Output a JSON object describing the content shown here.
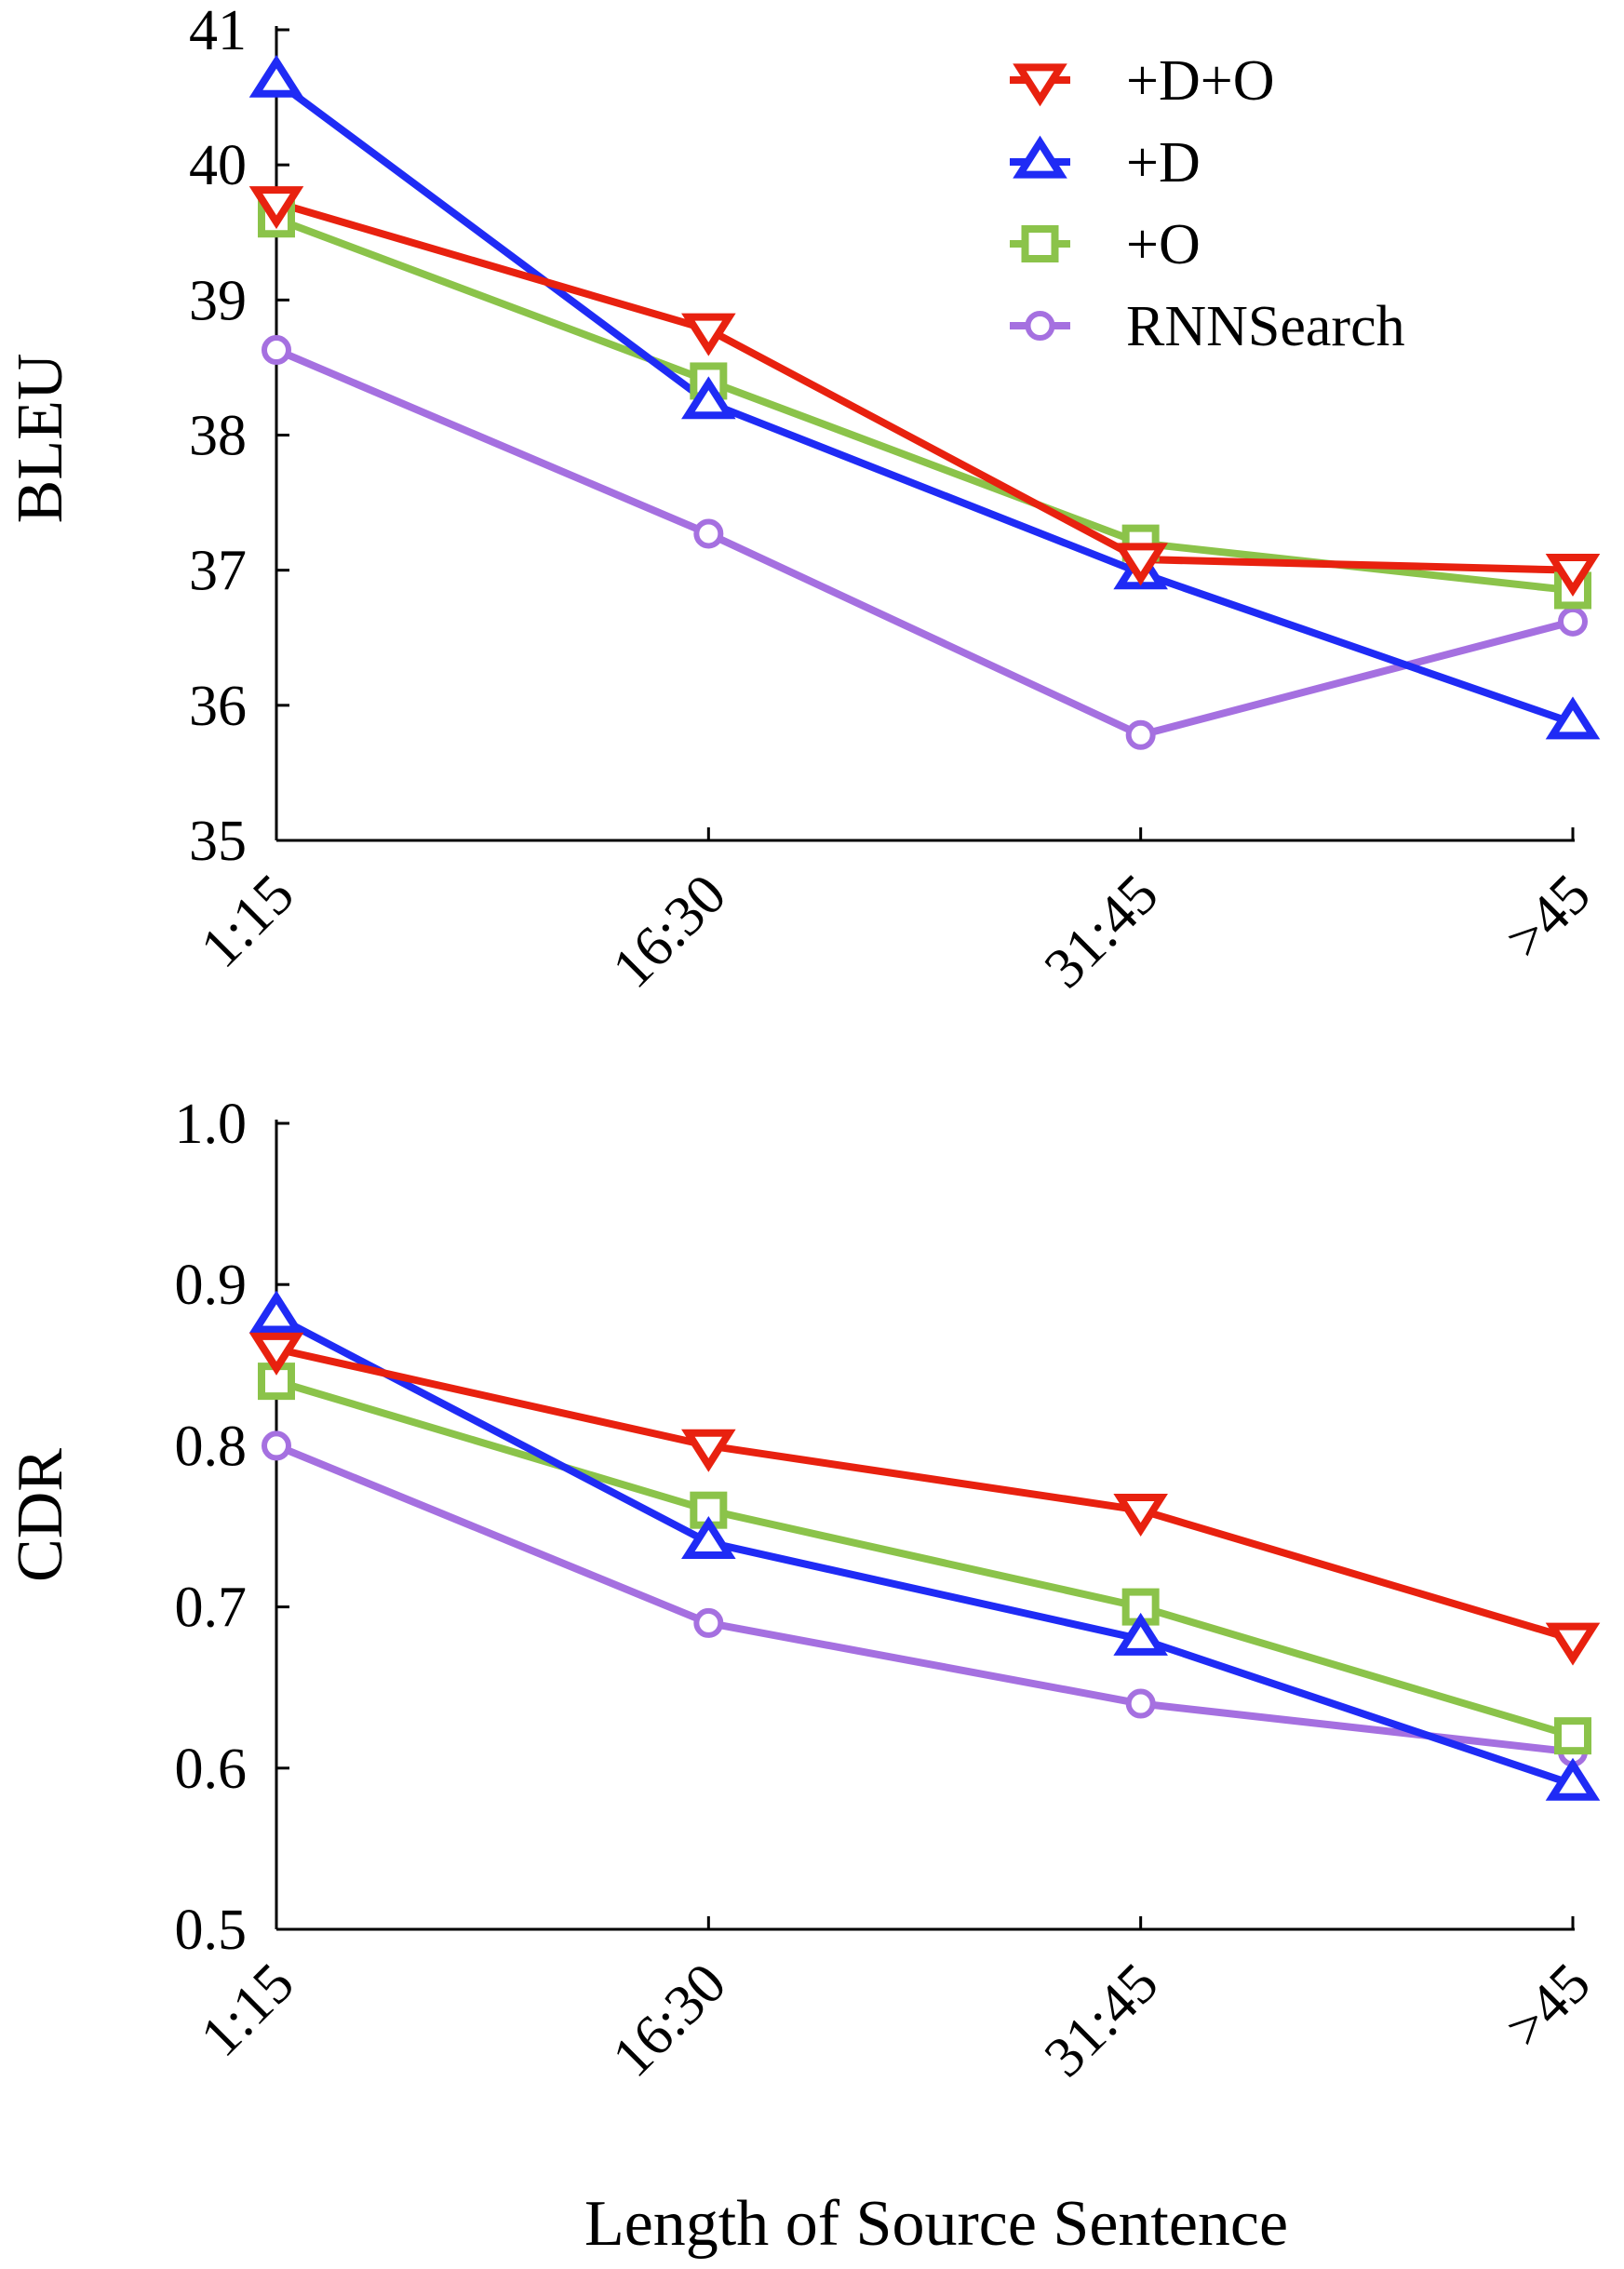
{
  "chart_data": [
    {
      "type": "line",
      "id": "bleu",
      "title": "",
      "xlabel": "",
      "ylabel": "BLEU",
      "categories": [
        "1:15",
        "16:30",
        "31:45",
        ">45"
      ],
      "ylim": [
        35,
        41
      ],
      "yticks": [
        "35",
        "36",
        "37",
        "38",
        "39",
        "40",
        "41"
      ],
      "series": [
        {
          "name": "+D+O",
          "color": "#e8210f",
          "marker": "triangle-down",
          "values": [
            39.72,
            38.78,
            37.08,
            37.0
          ]
        },
        {
          "name": "+D",
          "color": "#1f2bf5",
          "marker": "triangle-up",
          "values": [
            40.62,
            38.24,
            36.98,
            35.87
          ]
        },
        {
          "name": "+O",
          "color": "#8bc34a",
          "marker": "square",
          "values": [
            39.6,
            38.4,
            37.2,
            36.85
          ]
        },
        {
          "name": "RNNSearch",
          "color": "#a570e0",
          "marker": "circle",
          "values": [
            38.63,
            37.27,
            35.78,
            36.62
          ]
        }
      ]
    },
    {
      "type": "line",
      "id": "cdr",
      "title": "",
      "xlabel": "Length of Source Sentence",
      "ylabel": "CDR",
      "categories": [
        "1:15",
        "16:30",
        "31:45",
        ">45"
      ],
      "ylim": [
        0.5,
        1.0
      ],
      "yticks": [
        "0.5",
        "0.6",
        "0.7",
        "0.8",
        "0.9",
        "1.0"
      ],
      "series": [
        {
          "name": "+D+O",
          "color": "#e8210f",
          "marker": "triangle-down",
          "values": [
            0.86,
            0.8,
            0.76,
            0.68
          ]
        },
        {
          "name": "+D",
          "color": "#1f2bf5",
          "marker": "triangle-up",
          "values": [
            0.88,
            0.74,
            0.68,
            0.59
          ]
        },
        {
          "name": "+O",
          "color": "#8bc34a",
          "marker": "square",
          "values": [
            0.84,
            0.76,
            0.7,
            0.62
          ]
        },
        {
          "name": "RNNSearch",
          "color": "#a570e0",
          "marker": "circle",
          "values": [
            0.8,
            0.69,
            0.64,
            0.61
          ]
        }
      ]
    }
  ],
  "legend": {
    "placement": "top-right of first chart",
    "entries": [
      {
        "label": "+D+O",
        "color": "#e8210f",
        "marker": "triangle-down"
      },
      {
        "label": "+D",
        "color": "#1f2bf5",
        "marker": "triangle-up"
      },
      {
        "label": "+O",
        "color": "#8bc34a",
        "marker": "square"
      },
      {
        "label": "RNNSearch",
        "color": "#a570e0",
        "marker": "circle"
      }
    ]
  }
}
